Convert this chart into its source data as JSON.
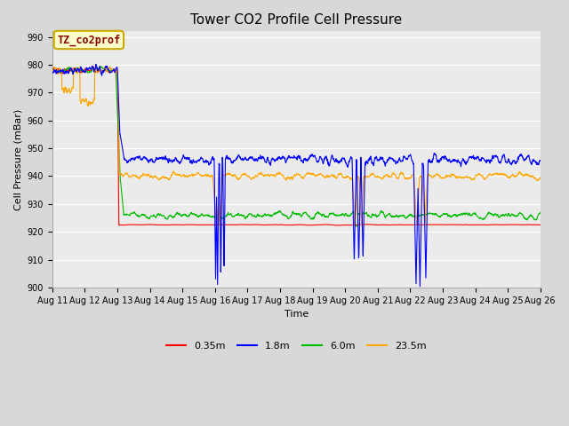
{
  "title": "Tower CO2 Profile Cell Pressure",
  "xlabel": "Time",
  "ylabel": "Cell Pressure (mBar)",
  "ylim": [
    900,
    992
  ],
  "yticks": [
    900,
    910,
    920,
    930,
    940,
    950,
    960,
    970,
    980,
    990
  ],
  "colors": {
    "red": "#FF0000",
    "blue": "#0000FF",
    "green": "#00BB00",
    "orange": "#FFA500"
  },
  "legend_labels": [
    "0.35m",
    "1.8m",
    "6.0m",
    "23.5m"
  ],
  "annotation_text": "TZ_co2prof",
  "annotation_color": "#880000",
  "annotation_bg": "#FFFFCC",
  "annotation_edge": "#CCAA00",
  "fig_bg": "#D8D8D8",
  "plot_bg": "#EBEBEB",
  "grid_color": "#FFFFFF",
  "title_fontsize": 11,
  "label_fontsize": 8,
  "tick_fontsize": 7,
  "legend_fontsize": 8
}
